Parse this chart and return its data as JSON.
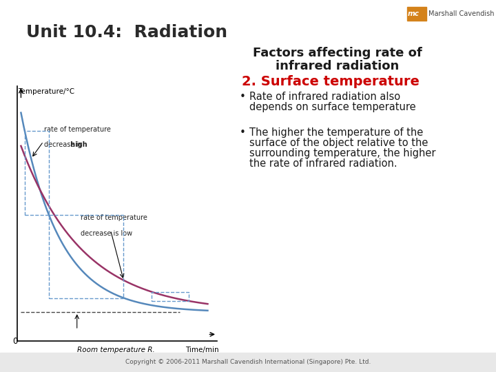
{
  "title_unit": "Unit 10.4:  Radiation",
  "heading1": "Factors affecting rate of",
  "heading2": "infrared radiation",
  "heading3": "2. Surface temperature",
  "bullet1_line1": "Rate of infrared radiation also",
  "bullet1_line2": "depends on surface temperature",
  "bullet2_line1": "The higher the temperature of the",
  "bullet2_line2": "surface of the object relative to the",
  "bullet2_line3": "surrounding temperature, the higher",
  "bullet2_line4": "the rate of infrared radiation.",
  "graph_ylabel": "Temperature/°C",
  "graph_xlabel_left": "Room temperature R.",
  "graph_xlabel_right": "Time/min",
  "graph_label0": "0",
  "graph_ann1a": "rate of temperature",
  "graph_ann1b": "decrease is ",
  "graph_ann1c": "high",
  "graph_ann2a": "rate of temperature",
  "graph_ann2b": "decrease is low",
  "copyright": "Copyright © 2006-2011 Marshall Cavendish International (Singapore) Pte. Ltd.",
  "footer_bg": "#e8e8e8",
  "slide_bg": "#ffffff",
  "title_color": "#2a2a2a",
  "heading_color": "#1a1a1a",
  "heading3_color": "#cc0000",
  "bullet_color": "#1a1a1a",
  "logo_bg": "#d4821a",
  "curve_blue": "#5588bb",
  "curve_red": "#993366",
  "dashed_blue": "#6699cc",
  "room_dash": "#444444",
  "ann_color": "#222222"
}
